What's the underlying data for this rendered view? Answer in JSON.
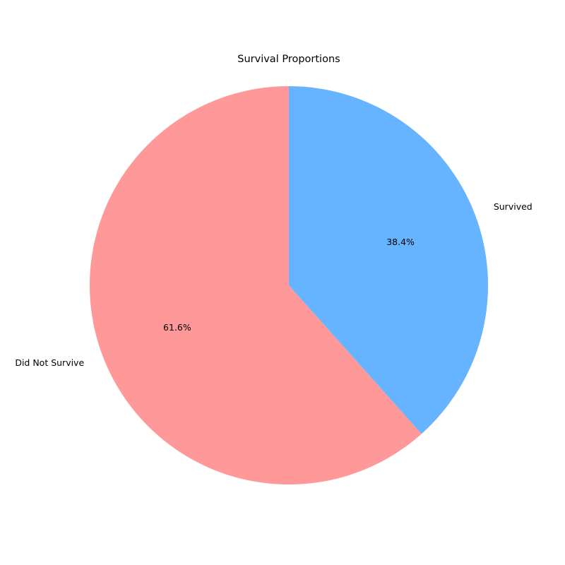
{
  "chart_data": {
    "type": "pie",
    "title": "Survival Proportions",
    "labels": [
      "Did Not Survive",
      "Survived"
    ],
    "values": [
      61.6,
      38.4
    ],
    "percent_labels": [
      "61.6%",
      "38.4%"
    ],
    "colors": [
      "#ff9999",
      "#66b3ff"
    ],
    "start_angle_deg": 90,
    "direction": "counterclockwise",
    "legend": "none"
  }
}
